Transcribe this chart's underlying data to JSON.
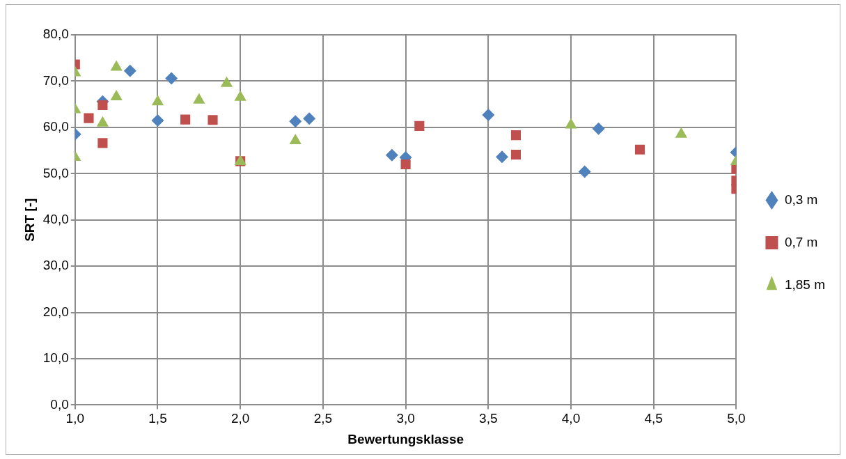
{
  "chart_data": {
    "type": "scatter",
    "xlabel": "Bewertungsklasse",
    "ylabel": "SRT [-]",
    "xlim": [
      1,
      5
    ],
    "ylim": [
      0,
      80
    ],
    "xticks": [
      {
        "value": 1,
        "label": "1,0"
      },
      {
        "value": 1.5,
        "label": "1,5"
      },
      {
        "value": 2,
        "label": "2,0"
      },
      {
        "value": 2.5,
        "label": "2,5"
      },
      {
        "value": 3,
        "label": "3,0"
      },
      {
        "value": 3.5,
        "label": "3,5"
      },
      {
        "value": 4,
        "label": "4,0"
      },
      {
        "value": 4.5,
        "label": "4,5"
      },
      {
        "value": 5,
        "label": "5,0"
      }
    ],
    "yticks": [
      {
        "value": 0,
        "label": "0,0"
      },
      {
        "value": 10,
        "label": "10,0"
      },
      {
        "value": 20,
        "label": "20,0"
      },
      {
        "value": 30,
        "label": "30,0"
      },
      {
        "value": 40,
        "label": "40,0"
      },
      {
        "value": 50,
        "label": "50,0"
      },
      {
        "value": 60,
        "label": "60,0"
      },
      {
        "value": 70,
        "label": "70,0"
      },
      {
        "value": 80,
        "label": "80,0"
      }
    ],
    "grid": true,
    "legend": "right",
    "series": [
      {
        "name": "0,3 m",
        "color": "#4f81bd",
        "marker": "diamond",
        "x": [
          1.0,
          1.167,
          1.333,
          1.5,
          1.583,
          2.333,
          2.417,
          2.917,
          3.0,
          3.5,
          3.583,
          4.083,
          4.167,
          5.0
        ],
        "values": [
          58.5,
          65.6,
          72.2,
          61.5,
          70.6,
          61.3,
          61.9,
          54.0,
          53.5,
          62.7,
          53.6,
          50.4,
          59.7,
          54.6
        ]
      },
      {
        "name": "0,7 m",
        "color": "#c0504d",
        "marker": "square",
        "x": [
          1.0,
          1.083,
          1.167,
          1.167,
          1.667,
          1.833,
          2.0,
          3.0,
          3.083,
          3.667,
          3.667,
          4.417,
          5.0,
          5.0,
          5.0
        ],
        "values": [
          73.6,
          62.0,
          64.8,
          56.6,
          61.7,
          61.6,
          52.7,
          52.0,
          60.3,
          58.3,
          54.1,
          55.2,
          51.0,
          48.5,
          46.7
        ]
      },
      {
        "name": "1,85 m",
        "color": "#9bbb59",
        "marker": "triangle",
        "x": [
          1.0,
          1.0,
          1.0,
          1.167,
          1.25,
          1.25,
          1.5,
          1.75,
          1.917,
          2.0,
          2.0,
          2.333,
          4.0,
          4.667,
          5.0
        ],
        "values": [
          71.8,
          63.8,
          53.5,
          60.9,
          73.0,
          66.6,
          65.5,
          65.9,
          69.5,
          66.5,
          52.6,
          57.1,
          60.5,
          58.5,
          52.6
        ]
      }
    ]
  }
}
